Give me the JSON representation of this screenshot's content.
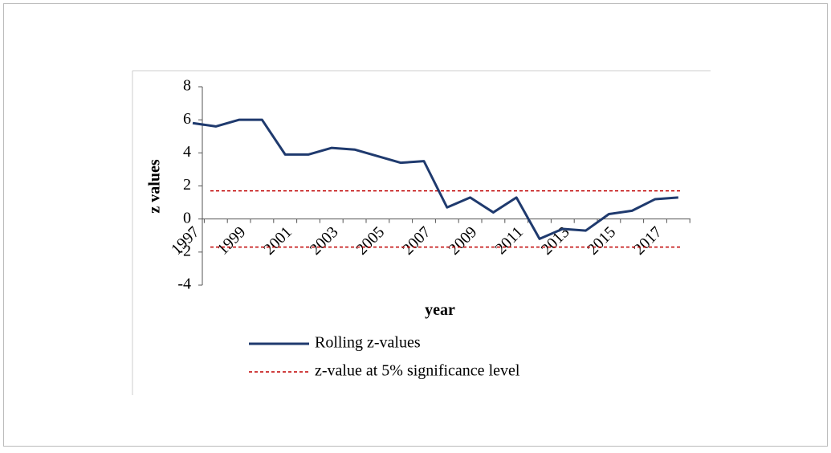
{
  "chart_data": {
    "type": "line",
    "x_label": "year",
    "y_label": "z values",
    "categories": [
      "1997",
      null,
      "1999",
      null,
      "2001",
      null,
      "2003",
      null,
      "2005",
      null,
      "2007",
      null,
      "2009",
      null,
      "2011",
      null,
      "2013",
      null,
      "2015",
      null,
      "2017",
      null
    ],
    "series": [
      {
        "name": "Rolling z-values",
        "color": "#1f3a6e",
        "values": [
          5.8,
          5.6,
          6.0,
          6.0,
          3.9,
          3.9,
          4.3,
          4.2,
          3.8,
          3.4,
          3.5,
          0.7,
          1.3,
          0.4,
          1.3,
          -1.2,
          -0.6,
          -0.7,
          0.3,
          0.5,
          1.2,
          1.3
        ]
      }
    ],
    "reference_lines": {
      "name": "z-value at 5% significance level",
      "color": "#c00000",
      "style": "dashed",
      "values": [
        1.7,
        -1.7
      ]
    },
    "ylim": [
      -4,
      8
    ],
    "yticks": [
      -4,
      -2,
      0,
      2,
      4,
      6,
      8
    ]
  }
}
